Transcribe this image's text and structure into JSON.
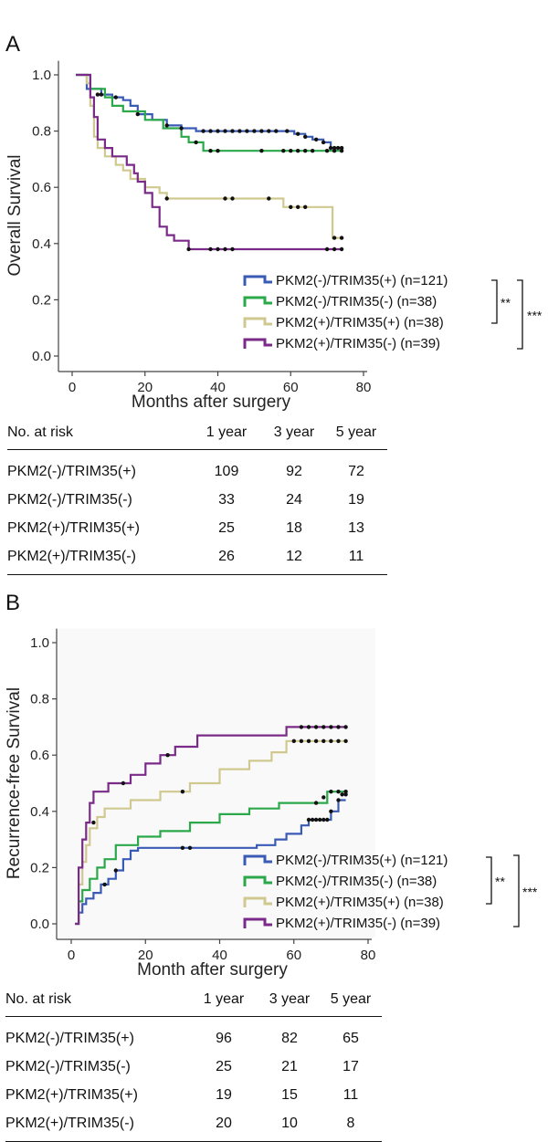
{
  "chart_data": [
    {
      "panel": "A",
      "type": "line",
      "step": true,
      "xlabel": "Months after surgery",
      "ylabel": "Overall Survival",
      "xlim": [
        0,
        80
      ],
      "ylim": [
        0,
        1.0
      ],
      "xticks": [
        "0",
        "20",
        "40",
        "60",
        "80"
      ],
      "yticks": [
        "0.0",
        "0.2",
        "0.4",
        "0.6",
        "0.8",
        "1.0"
      ],
      "legend_position": "right",
      "series": [
        {
          "name": "PKM2(-)/TRIM35(+) (n=121)",
          "color": "#3a5bb5",
          "steps": [
            [
              1,
              1.0
            ],
            [
              4,
              0.95
            ],
            [
              8,
              0.93
            ],
            [
              11,
              0.92
            ],
            [
              14,
              0.91
            ],
            [
              16,
              0.89
            ],
            [
              18,
              0.86
            ],
            [
              22,
              0.84
            ],
            [
              26,
              0.82
            ],
            [
              30,
              0.81
            ],
            [
              34,
              0.8
            ],
            [
              58,
              0.8
            ],
            [
              61,
              0.79
            ],
            [
              64,
              0.78
            ],
            [
              66,
              0.77
            ],
            [
              69,
              0.76
            ],
            [
              71,
              0.74
            ],
            [
              74,
              0.74
            ]
          ],
          "censored": [
            [
              7,
              0.93
            ],
            [
              12,
              0.92
            ],
            [
              18,
              0.86
            ],
            [
              26,
              0.82
            ],
            [
              30,
              0.81
            ],
            [
              36,
              0.8
            ],
            [
              38,
              0.8
            ],
            [
              40,
              0.8
            ],
            [
              42,
              0.8
            ],
            [
              44,
              0.8
            ],
            [
              46,
              0.8
            ],
            [
              48,
              0.8
            ],
            [
              50,
              0.8
            ],
            [
              52,
              0.8
            ],
            [
              54,
              0.8
            ],
            [
              56,
              0.8
            ],
            [
              59,
              0.8
            ],
            [
              62,
              0.79
            ],
            [
              64,
              0.78
            ],
            [
              67,
              0.77
            ],
            [
              69,
              0.76
            ],
            [
              71,
              0.74
            ],
            [
              72,
              0.74
            ],
            [
              73,
              0.74
            ],
            [
              74,
              0.74
            ]
          ]
        },
        {
          "name": "PKM2(-)/TRIM35(-) (n=38)",
          "color": "#2aa84a",
          "steps": [
            [
              1,
              1.0
            ],
            [
              5,
              0.95
            ],
            [
              9,
              0.92
            ],
            [
              11,
              0.89
            ],
            [
              14,
              0.87
            ],
            [
              20,
              0.84
            ],
            [
              25,
              0.81
            ],
            [
              30,
              0.78
            ],
            [
              32,
              0.76
            ],
            [
              36,
              0.73
            ],
            [
              74,
              0.73
            ]
          ],
          "censored": [
            [
              8,
              0.93
            ],
            [
              34,
              0.76
            ],
            [
              38,
              0.73
            ],
            [
              40,
              0.73
            ],
            [
              52,
              0.73
            ],
            [
              58,
              0.73
            ],
            [
              60,
              0.73
            ],
            [
              62,
              0.73
            ],
            [
              64,
              0.73
            ],
            [
              66,
              0.73
            ],
            [
              70,
              0.73
            ],
            [
              72,
              0.73
            ],
            [
              74,
              0.73
            ]
          ]
        },
        {
          "name": "PKM2(+)/TRIM35(+) (n=38)",
          "color": "#cfc98f",
          "steps": [
            [
              1,
              1.0
            ],
            [
              4,
              0.97
            ],
            [
              5,
              0.89
            ],
            [
              6,
              0.78
            ],
            [
              7,
              0.74
            ],
            [
              9,
              0.71
            ],
            [
              12,
              0.68
            ],
            [
              14,
              0.66
            ],
            [
              16,
              0.63
            ],
            [
              20,
              0.6
            ],
            [
              24,
              0.58
            ],
            [
              26,
              0.56
            ],
            [
              54,
              0.56
            ],
            [
              58,
              0.53
            ],
            [
              71,
              0.53
            ],
            [
              71.5,
              0.42
            ],
            [
              74,
              0.42
            ]
          ],
          "censored": [
            [
              26,
              0.56
            ],
            [
              42,
              0.56
            ],
            [
              44,
              0.56
            ],
            [
              54,
              0.56
            ],
            [
              60,
              0.53
            ],
            [
              62,
              0.53
            ],
            [
              64,
              0.53
            ],
            [
              72,
              0.42
            ],
            [
              74,
              0.42
            ]
          ]
        },
        {
          "name": "PKM2(+)/TRIM35(-) (n=39)",
          "color": "#7a2a88",
          "steps": [
            [
              1,
              1.0
            ],
            [
              5,
              0.92
            ],
            [
              6,
              0.85
            ],
            [
              7,
              0.77
            ],
            [
              9,
              0.74
            ],
            [
              11,
              0.71
            ],
            [
              13,
              0.71
            ],
            [
              15,
              0.68
            ],
            [
              17,
              0.65
            ],
            [
              18,
              0.62
            ],
            [
              20,
              0.58
            ],
            [
              22,
              0.53
            ],
            [
              24,
              0.46
            ],
            [
              26,
              0.43
            ],
            [
              28,
              0.41
            ],
            [
              32,
              0.38
            ],
            [
              74,
              0.38
            ]
          ],
          "censored": [
            [
              32,
              0.38
            ],
            [
              38,
              0.38
            ],
            [
              40,
              0.38
            ],
            [
              42,
              0.38
            ],
            [
              44,
              0.38
            ],
            [
              70,
              0.38
            ],
            [
              72,
              0.38
            ],
            [
              74,
              0.38
            ]
          ]
        }
      ],
      "significance": [
        {
          "label": "**",
          "span": "green-khaki"
        },
        {
          "label": "***",
          "span": "blue-purple"
        }
      ]
    },
    {
      "panel": "B",
      "type": "line",
      "step": true,
      "xlabel": "Month after surgery",
      "ylabel": "Recurrence-free Survival",
      "xlim": [
        0,
        80
      ],
      "ylim": [
        0,
        1.0
      ],
      "xticks": [
        "0",
        "20",
        "40",
        "60",
        "80"
      ],
      "yticks": [
        "0.0",
        "0.2",
        "0.4",
        "0.6",
        "0.8",
        "1.0"
      ],
      "legend_position": "right",
      "series": [
        {
          "name": "PKM2(-)/TRIM35(+) (n=121)",
          "color": "#3a5bb5",
          "steps": [
            [
              1,
              0
            ],
            [
              2,
              0.04
            ],
            [
              3,
              0.07
            ],
            [
              4,
              0.09
            ],
            [
              6,
              0.11
            ],
            [
              8,
              0.14
            ],
            [
              10,
              0.16
            ],
            [
              12,
              0.19
            ],
            [
              14,
              0.23
            ],
            [
              16,
              0.26
            ],
            [
              18,
              0.27
            ],
            [
              45,
              0.27
            ],
            [
              50,
              0.28
            ],
            [
              55,
              0.3
            ],
            [
              58,
              0.32
            ],
            [
              62,
              0.35
            ],
            [
              64,
              0.37
            ],
            [
              70,
              0.4
            ],
            [
              72,
              0.44
            ],
            [
              74,
              0.44
            ]
          ],
          "censored": [
            [
              9,
              0.14
            ],
            [
              12,
              0.19
            ],
            [
              30,
              0.27
            ],
            [
              32,
              0.27
            ],
            [
              64,
              0.37
            ],
            [
              65,
              0.37
            ],
            [
              66,
              0.37
            ],
            [
              67,
              0.37
            ],
            [
              68,
              0.37
            ],
            [
              69,
              0.37
            ],
            [
              70,
              0.4
            ],
            [
              72,
              0.44
            ],
            [
              73,
              0.46
            ],
            [
              74,
              0.46
            ]
          ]
        },
        {
          "name": "PKM2(-)/TRIM35(-) (n=38)",
          "color": "#2aa84a",
          "steps": [
            [
              1,
              0
            ],
            [
              2,
              0.08
            ],
            [
              3,
              0.12
            ],
            [
              5,
              0.16
            ],
            [
              7,
              0.2
            ],
            [
              9,
              0.23
            ],
            [
              12,
              0.28
            ],
            [
              18,
              0.31
            ],
            [
              24,
              0.33
            ],
            [
              32,
              0.36
            ],
            [
              40,
              0.39
            ],
            [
              48,
              0.41
            ],
            [
              56,
              0.43
            ],
            [
              68,
              0.43
            ],
            [
              69,
              0.47
            ],
            [
              74,
              0.47
            ]
          ],
          "censored": [
            [
              66,
              0.43
            ],
            [
              68,
              0.45
            ],
            [
              70,
              0.47
            ],
            [
              72,
              0.47
            ],
            [
              74,
              0.47
            ]
          ]
        },
        {
          "name": "PKM2(+)/TRIM35(+) (n=38)",
          "color": "#cfc98f",
          "steps": [
            [
              1,
              0
            ],
            [
              2,
              0.14
            ],
            [
              3,
              0.22
            ],
            [
              4,
              0.28
            ],
            [
              5,
              0.34
            ],
            [
              7,
              0.38
            ],
            [
              9,
              0.41
            ],
            [
              16,
              0.44
            ],
            [
              24,
              0.47
            ],
            [
              32,
              0.5
            ],
            [
              40,
              0.55
            ],
            [
              48,
              0.58
            ],
            [
              54,
              0.61
            ],
            [
              58,
              0.65
            ],
            [
              74,
              0.65
            ]
          ],
          "censored": [
            [
              6,
              0.36
            ],
            [
              30,
              0.47
            ],
            [
              60,
              0.65
            ],
            [
              62,
              0.65
            ],
            [
              64,
              0.65
            ],
            [
              66,
              0.65
            ],
            [
              68,
              0.65
            ],
            [
              70,
              0.65
            ],
            [
              72,
              0.65
            ],
            [
              74,
              0.65
            ]
          ]
        },
        {
          "name": "PKM2(+)/TRIM35(-) (n=39)",
          "color": "#7a2a88",
          "steps": [
            [
              1,
              0
            ],
            [
              2,
              0.2
            ],
            [
              3,
              0.3
            ],
            [
              4,
              0.36
            ],
            [
              5,
              0.43
            ],
            [
              6,
              0.47
            ],
            [
              10,
              0.5
            ],
            [
              16,
              0.53
            ],
            [
              20,
              0.57
            ],
            [
              24,
              0.6
            ],
            [
              28,
              0.63
            ],
            [
              34,
              0.67
            ],
            [
              58,
              0.7
            ],
            [
              74,
              0.7
            ]
          ],
          "censored": [
            [
              14,
              0.5
            ],
            [
              26,
              0.6
            ],
            [
              62,
              0.7
            ],
            [
              64,
              0.7
            ],
            [
              66,
              0.7
            ],
            [
              68,
              0.7
            ],
            [
              70,
              0.7
            ],
            [
              72,
              0.7
            ],
            [
              74,
              0.7
            ]
          ]
        }
      ],
      "significance": [
        {
          "label": "**",
          "span": "blue-khaki"
        },
        {
          "label": "***",
          "span": "blue-purple"
        }
      ]
    }
  ],
  "panelA": {
    "letter": "A",
    "table": {
      "header": [
        "No. at risk",
        "1 year",
        "3 year",
        "5 year"
      ],
      "rows": [
        [
          "PKM2(-)/TRIM35(+)",
          "109",
          "92",
          "72"
        ],
        [
          "PKM2(-)/TRIM35(-)",
          "33",
          "24",
          "19"
        ],
        [
          "PKM2(+)/TRIM35(+)",
          "25",
          "18",
          "13"
        ],
        [
          "PKM2(+)/TRIM35(-)",
          "26",
          "12",
          "11"
        ]
      ]
    }
  },
  "panelB": {
    "letter": "B",
    "table": {
      "header": [
        "No. at risk",
        "1 year",
        "3 year",
        "5 year"
      ],
      "rows": [
        [
          "PKM2(-)/TRIM35(+)",
          "96",
          "82",
          "65"
        ],
        [
          "PKM2(-)/TRIM35(-)",
          "25",
          "21",
          "17"
        ],
        [
          "PKM2(+)/TRIM35(+)",
          "19",
          "15",
          "11"
        ],
        [
          "PKM2(+)/TRIM35(-)",
          "20",
          "10",
          "8"
        ]
      ]
    }
  }
}
